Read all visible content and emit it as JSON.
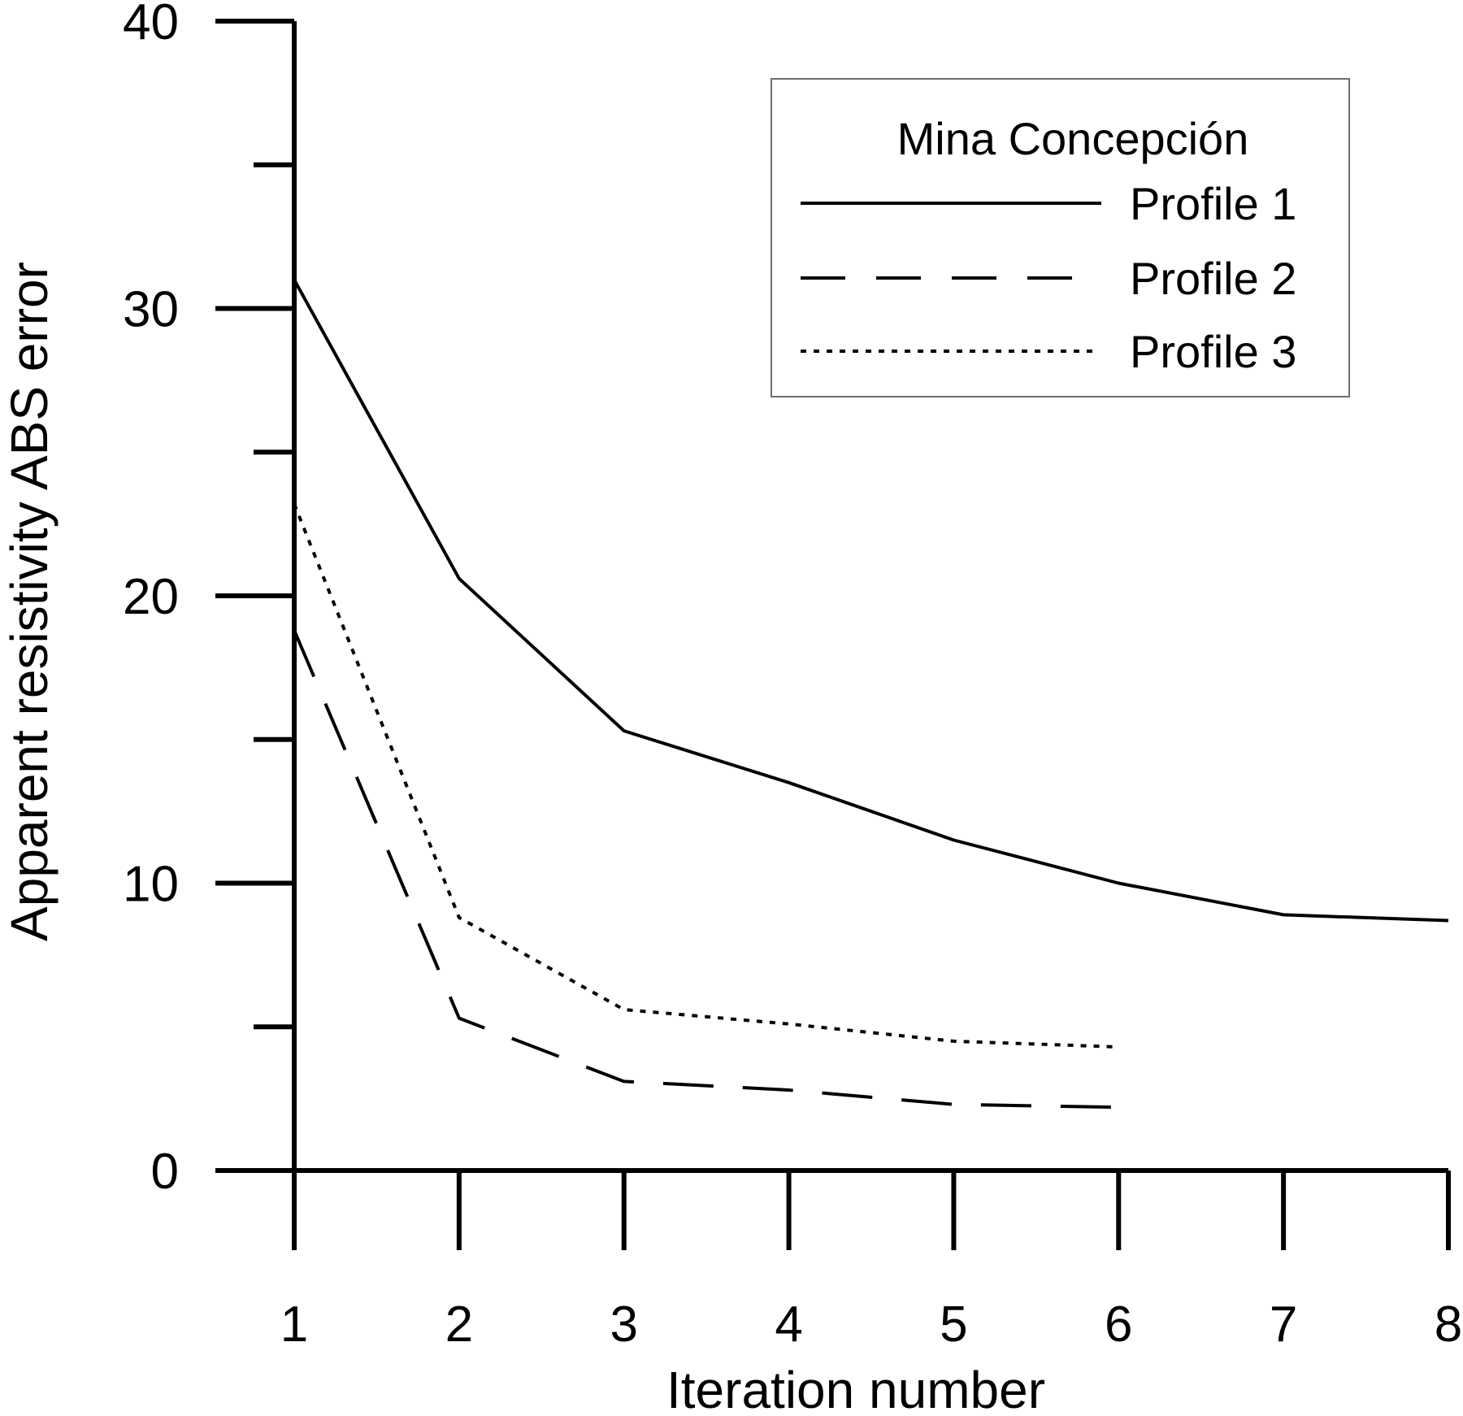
{
  "chart_data": {
    "type": "line",
    "xlabel": "Iteration number",
    "ylabel": "Apparent resistivity ABS error",
    "xlim": [
      1,
      8
    ],
    "ylim": [
      0,
      40
    ],
    "x_ticks": [
      1,
      2,
      3,
      4,
      5,
      6,
      7,
      8
    ],
    "y_ticks_labeled": [
      0,
      10,
      20,
      30,
      40
    ],
    "y_ticks_minor": [
      5,
      15,
      25,
      35
    ],
    "grid": false,
    "legend": {
      "title": "Mina Concepción",
      "position": "top-right"
    },
    "series": [
      {
        "name": "Profile 1",
        "style": "solid",
        "x": [
          1,
          2,
          3,
          4,
          5,
          6,
          7,
          8
        ],
        "y": [
          31.0,
          20.6,
          15.3,
          13.5,
          11.5,
          10.0,
          8.9,
          8.7
        ]
      },
      {
        "name": "Profile 2",
        "style": "dashed",
        "x": [
          1,
          2,
          3,
          4,
          5,
          6
        ],
        "y": [
          18.8,
          5.3,
          3.1,
          2.8,
          2.3,
          2.2
        ]
      },
      {
        "name": "Profile 3",
        "style": "dotted",
        "x": [
          1,
          2,
          3,
          4,
          5,
          6
        ],
        "y": [
          23.2,
          8.8,
          5.6,
          5.1,
          4.5,
          4.3
        ]
      }
    ],
    "colors": {
      "lines": "#000000",
      "legend_border": "#6f6f6f"
    }
  }
}
